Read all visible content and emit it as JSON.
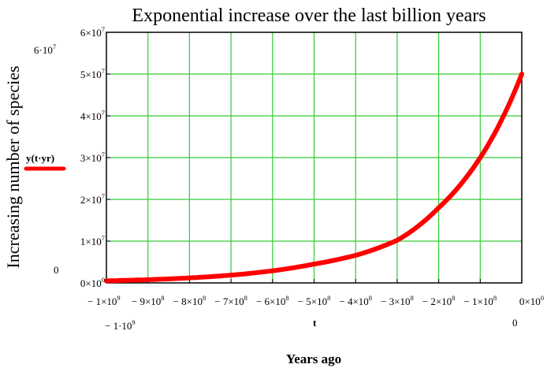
{
  "chart_data": {
    "type": "line",
    "title": "Exponential increase over the last billion years",
    "ylabel": "Increasing number of species",
    "xlabel": "Years ago",
    "x_variable": "t",
    "series": [
      {
        "name": "y(t·yr)",
        "color": "#ff0000",
        "x": [
          -1000000000,
          -900000000,
          -800000000,
          -700000000,
          -600000000,
          -500000000,
          -400000000,
          -300000000,
          -200000000,
          -100000000,
          0
        ],
        "y": [
          497000,
          773000,
          1200000,
          1860000,
          2900000,
          4500000,
          6600000,
          10200000,
          18000000,
          30000000,
          50000000
        ]
      }
    ],
    "xlim": [
      -1000000000,
      0
    ],
    "ylim": [
      0,
      60000000
    ],
    "x_ticks": [
      {
        "value": -1000000000,
        "mant": "− 1×10",
        "exp": "9"
      },
      {
        "value": -900000000,
        "mant": "− 9×10",
        "exp": "8"
      },
      {
        "value": -800000000,
        "mant": "− 8×10",
        "exp": "8"
      },
      {
        "value": -700000000,
        "mant": "− 7×10",
        "exp": "8"
      },
      {
        "value": -600000000,
        "mant": "− 6×10",
        "exp": "8"
      },
      {
        "value": -500000000,
        "mant": "− 5×10",
        "exp": "8"
      },
      {
        "value": -400000000,
        "mant": "− 4×10",
        "exp": "8"
      },
      {
        "value": -300000000,
        "mant": "− 3×10",
        "exp": "8"
      },
      {
        "value": -200000000,
        "mant": "− 2×10",
        "exp": "8"
      },
      {
        "value": -100000000,
        "mant": "− 1×10",
        "exp": "8"
      },
      {
        "value": 0,
        "mant": "0×10",
        "exp": "0"
      }
    ],
    "y_ticks": [
      {
        "value": 0,
        "mant": "0×10",
        "exp": "0"
      },
      {
        "value": 10000000,
        "mant": "1×10",
        "exp": "7"
      },
      {
        "value": 20000000,
        "mant": "2×10",
        "exp": "7"
      },
      {
        "value": 30000000,
        "mant": "3×10",
        "exp": "7"
      },
      {
        "value": 40000000,
        "mant": "4×10",
        "exp": "7"
      },
      {
        "value": 50000000,
        "mant": "5×10",
        "exp": "7"
      },
      {
        "value": 60000000,
        "mant": "6×10",
        "exp": "7"
      }
    ],
    "y_limit_labels": {
      "top_mant": "6·10",
      "top_exp": "7",
      "bottom": "0"
    },
    "x_limit_labels": {
      "left_mant": "− 1·10",
      "left_exp": "9",
      "right": "0"
    },
    "grid": true,
    "grid_color": "#33cc33",
    "axis_color": "#000000"
  }
}
